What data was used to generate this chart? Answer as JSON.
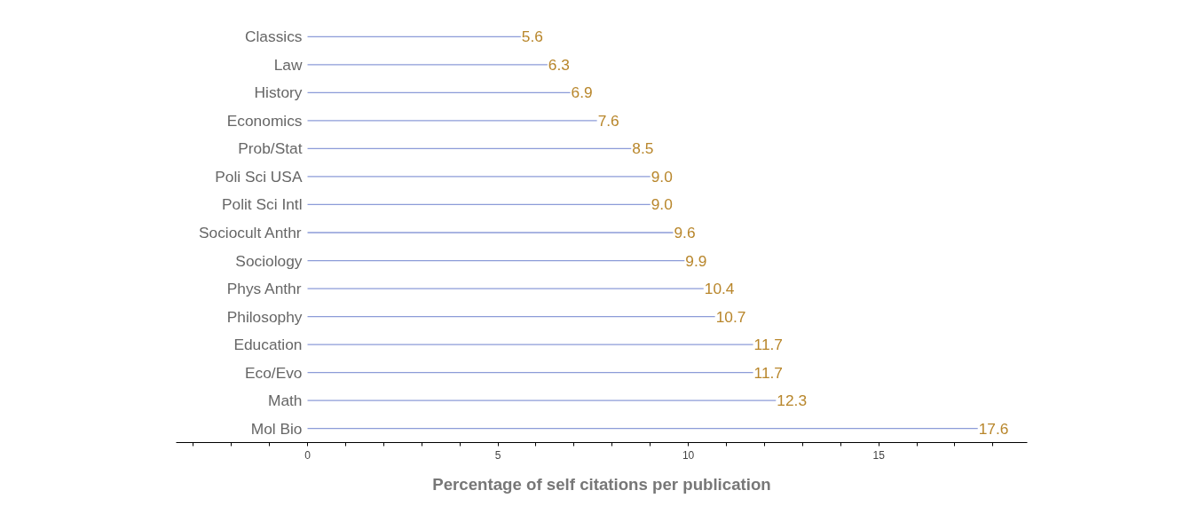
{
  "chart_data": {
    "type": "bar",
    "orientation": "horizontal",
    "xlabel": "Percentage of self citations per publication",
    "categories": [
      "Classics",
      "Law",
      "History",
      "Economics",
      "Prob/Stat",
      "Poli Sci USA",
      "Polit Sci Intl",
      "Sociocult Anthr",
      "Sociology",
      "Phys Anthr",
      "Philosophy",
      "Education",
      "Eco/Evo",
      "Math",
      "Mol Bio"
    ],
    "values": [
      5.6,
      6.3,
      6.9,
      7.6,
      8.5,
      9.0,
      9.0,
      9.6,
      9.9,
      10.4,
      10.7,
      11.7,
      11.7,
      12.3,
      17.6
    ],
    "color": "#8c9bd8",
    "value_labels": [
      "5.6",
      "6.3",
      "6.9",
      "7.6",
      "8.5",
      "9.0",
      "9.0",
      "9.6",
      "9.9",
      "10.4",
      "10.7",
      "11.7",
      "11.7",
      "12.3",
      "17.6"
    ],
    "xlim": [
      -3.45,
      18.9
    ],
    "xticks": [
      {
        "value": -3,
        "label": null
      },
      {
        "value": -2,
        "label": null
      },
      {
        "value": -1,
        "label": null
      },
      0,
      {
        "value": 1,
        "label": null
      },
      {
        "value": 2,
        "label": null
      },
      {
        "value": 3,
        "label": null
      },
      {
        "value": 4,
        "label": null
      },
      5,
      {
        "value": 6,
        "label": null
      },
      {
        "value": 7,
        "label": null
      },
      {
        "value": 8,
        "label": null
      },
      {
        "value": 9,
        "label": null
      },
      10,
      {
        "value": 11,
        "label": null
      },
      {
        "value": 12,
        "label": null
      },
      {
        "value": 13,
        "label": null
      },
      {
        "value": 14,
        "label": null
      },
      15,
      {
        "value": 16,
        "label": null
      },
      {
        "value": 17,
        "label": null
      },
      {
        "value": 18,
        "label": null
      }
    ],
    "grid": false
  }
}
